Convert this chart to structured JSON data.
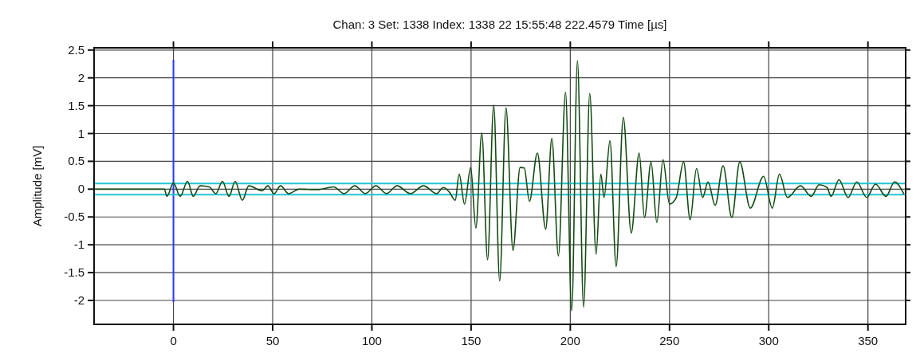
{
  "chart_data": {
    "type": "line",
    "title": "Chan: 3  Set: 1338  Index: 1338   22  15:55:48 222.4579  Time [µs]",
    "ylabel": "Amplitude [mV]",
    "xlim": [
      -40,
      369
    ],
    "ylim": [
      -2.43,
      2.54
    ],
    "xticks": [
      0,
      50,
      100,
      150,
      200,
      250,
      300,
      350
    ],
    "yticks": [
      -2,
      -1.5,
      -1,
      -0.5,
      0,
      0.5,
      1,
      1.5,
      2,
      2.5
    ],
    "grid": true,
    "marker": "none",
    "line_style": "solid",
    "ref_lines": [
      {
        "axis": "x",
        "value": 0,
        "color": "#2a3cff"
      },
      {
        "axis": "y",
        "value": 0.1,
        "color": "#22c4d4"
      },
      {
        "axis": "y",
        "value": -0.1,
        "color": "#22c4d4"
      }
    ],
    "series": [
      {
        "color": "#124a12",
        "x": [
          -39.3,
          -4.6,
          -3.3,
          0,
          3.4,
          7.1,
          10,
          13.4,
          18,
          21.4,
          24.7,
          28,
          31.1,
          34.7,
          38,
          44.7,
          47.6,
          50.7,
          54,
          58,
          63.4,
          72.7,
          80.7,
          86,
          91.4,
          96.7,
          102,
          107.4,
          112.7,
          119.4,
          126,
          132.7,
          136,
          139,
          142,
          144,
          146.7,
          149.8,
          152.4,
          155.4,
          158.3,
          161.4,
          164.4,
          167.6,
          171.1,
          174.7,
          176.8,
          179.4,
          183.4,
          187.6,
          190.7,
          194,
          197.6,
          200.7,
          203.6,
          206.7,
          209.8,
          213,
          215.4,
          217,
          220,
          223.1,
          226.7,
          230.7,
          234.7,
          237.4,
          240.7,
          243.6,
          246.7,
          250,
          253.4,
          257.1,
          260.4,
          263.6,
          266.7,
          269.4,
          273,
          277,
          281.4,
          285.4,
          290.7,
          297.4,
          301.8,
          305.4,
          309.4,
          316,
          321.4,
          325.4,
          329.4,
          331.4,
          335.4,
          340,
          344.4,
          349.4,
          353.8,
          359.1,
          363.4,
          368
        ],
        "values": [
          0,
          0,
          -0.13,
          0.11,
          -0.13,
          0.14,
          -0.13,
          0.06,
          0.04,
          -0.08,
          0.14,
          -0.13,
          0.14,
          -0.2,
          0.06,
          -0.03,
          0.06,
          -0.08,
          0.06,
          -0.08,
          0,
          -0.01,
          0.04,
          -0.08,
          0.06,
          -0.08,
          0.06,
          -0.08,
          0.06,
          -0.08,
          0.06,
          -0.08,
          0.03,
          -0.05,
          -0.2,
          0.27,
          -0.27,
          0.39,
          -0.7,
          1.01,
          -1.27,
          1.51,
          -1.65,
          1.46,
          -1.1,
          0.39,
          0.38,
          -0.22,
          0.65,
          -0.72,
          0.91,
          -1.2,
          1.74,
          -2.19,
          2.31,
          -2.12,
          1.72,
          -1.17,
          0.27,
          -0.15,
          0.87,
          -1.39,
          1.29,
          -0.79,
          0.65,
          -0.51,
          0.49,
          -0.6,
          0.53,
          -0.27,
          -0.15,
          0.49,
          -0.55,
          0.37,
          -0.15,
          0.13,
          -0.29,
          0.42,
          -0.51,
          0.49,
          -0.34,
          0.23,
          -0.34,
          0.27,
          -0.15,
          0.06,
          -0.13,
          0.08,
          0.03,
          -0.13,
          0.17,
          -0.15,
          0.13,
          -0.15,
          0.09,
          -0.13,
          0.13,
          -0.08
        ]
      }
    ]
  }
}
